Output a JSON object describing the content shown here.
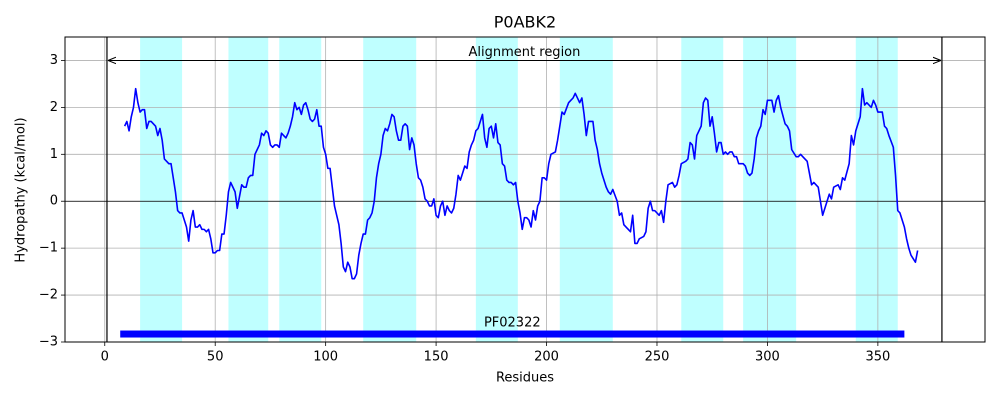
{
  "chart_data": {
    "type": "line",
    "title": "P0ABK2",
    "xlabel": "Residues",
    "ylabel": "Hydropathy (kcal/mol)",
    "x": [
      9,
      10,
      11,
      12,
      13,
      14,
      15,
      16,
      17,
      18,
      19,
      20,
      21,
      22,
      23,
      24,
      25,
      26,
      27,
      28,
      29,
      30,
      31,
      32,
      33,
      34,
      35,
      36,
      37,
      38,
      39,
      40,
      41,
      42,
      43,
      44,
      45,
      46,
      47,
      48,
      49,
      50,
      51,
      52,
      53,
      54,
      55,
      56,
      57,
      58,
      59,
      60,
      61,
      62,
      63,
      64,
      65,
      66,
      67,
      68,
      69,
      70,
      71,
      72,
      73,
      74,
      75,
      76,
      77,
      78,
      79,
      80,
      81,
      82,
      83,
      84,
      85,
      86,
      87,
      88,
      89,
      90,
      91,
      92,
      93,
      94,
      95,
      96,
      97,
      98,
      99,
      100,
      101,
      102,
      103,
      104,
      105,
      106,
      107,
      108,
      109,
      110,
      111,
      112,
      113,
      114,
      115,
      116,
      117,
      118,
      119,
      120,
      121,
      122,
      123,
      124,
      125,
      126,
      127,
      128,
      129,
      130,
      131,
      132,
      133,
      134,
      135,
      136,
      137,
      138,
      139,
      140,
      141,
      142,
      143,
      144,
      145,
      146,
      147,
      148,
      149,
      150,
      151,
      152,
      153,
      154,
      155,
      156,
      157,
      158,
      159,
      160,
      161,
      162,
      163,
      164,
      165,
      166,
      167,
      168,
      169,
      170,
      171,
      172,
      173,
      174,
      175,
      176,
      177,
      178,
      179,
      180,
      181,
      182,
      183,
      184,
      185,
      186,
      187,
      188,
      189,
      190,
      191,
      192,
      193,
      194,
      195,
      196,
      197,
      198,
      199,
      200,
      201,
      202,
      204,
      205,
      206,
      207,
      208,
      210,
      211,
      212,
      213,
      215,
      216,
      217,
      218,
      219,
      221,
      222,
      223,
      224,
      225,
      227,
      228,
      229,
      230,
      232,
      233,
      234,
      235,
      236,
      238,
      239,
      240,
      241,
      242,
      244,
      245,
      246,
      247,
      248,
      249,
      251,
      252,
      253,
      254,
      255,
      257,
      258,
      259,
      260,
      261,
      263,
      264,
      265,
      266,
      267,
      268,
      270,
      271,
      272,
      273,
      274,
      275,
      276,
      277,
      278,
      279,
      280,
      281,
      282,
      283,
      284,
      285,
      286,
      287,
      288,
      289,
      290,
      291,
      292,
      293,
      294,
      295,
      296,
      297,
      298,
      299,
      300,
      301,
      302,
      303,
      304,
      305,
      306,
      308,
      309,
      310,
      311,
      313,
      314,
      315,
      316,
      318,
      319,
      320,
      321,
      323,
      324,
      325,
      327,
      328,
      329,
      330,
      332,
      333,
      334,
      335,
      337,
      338,
      339,
      340,
      342,
      343,
      344,
      345,
      347,
      348,
      349,
      350,
      352,
      353,
      354,
      355,
      357,
      358,
      359,
      360,
      362,
      363,
      364,
      365,
      367,
      368
    ],
    "values": [
      1.6,
      1.7,
      1.5,
      1.8,
      2.0,
      2.4,
      2.1,
      1.9,
      1.95,
      1.95,
      1.55,
      1.7,
      1.7,
      1.65,
      1.6,
      1.4,
      1.55,
      1.3,
      0.9,
      0.85,
      0.8,
      0.8,
      0.5,
      0.2,
      -0.2,
      -0.25,
      -0.25,
      -0.4,
      -0.55,
      -0.85,
      -0.4,
      -0.2,
      -0.55,
      -0.55,
      -0.5,
      -0.6,
      -0.6,
      -0.65,
      -0.6,
      -0.8,
      -1.1,
      -1.1,
      -1.05,
      -1.05,
      -0.7,
      -0.7,
      -0.3,
      0.2,
      0.4,
      0.3,
      0.2,
      -0.15,
      0.1,
      0.35,
      0.3,
      0.3,
      0.5,
      0.55,
      0.55,
      1.0,
      1.1,
      1.2,
      1.45,
      1.4,
      1.5,
      1.45,
      1.2,
      1.15,
      1.2,
      1.2,
      1.15,
      1.45,
      1.4,
      1.35,
      1.45,
      1.6,
      1.8,
      2.1,
      1.95,
      2.0,
      1.85,
      2.05,
      2.1,
      1.95,
      1.75,
      1.7,
      1.75,
      1.95,
      1.6,
      1.6,
      1.15,
      1.0,
      0.7,
      0.7,
      0.3,
      -0.1,
      -0.3,
      -0.5,
      -0.9,
      -1.4,
      -1.5,
      -1.3,
      -1.4,
      -1.65,
      -1.65,
      -1.55,
      -1.15,
      -0.9,
      -0.7,
      -0.7,
      -0.4,
      -0.35,
      -0.25,
      0.0,
      0.5,
      0.8,
      1.0,
      1.4,
      1.55,
      1.5,
      1.65,
      1.85,
      1.8,
      1.5,
      1.3,
      1.3,
      1.6,
      1.65,
      1.6,
      1.1,
      1.35,
      1.2,
      0.8,
      0.5,
      0.45,
      0.3,
      0.05,
      0.0,
      -0.1,
      -0.1,
      0.05,
      -0.3,
      -0.35,
      -0.1,
      0.0,
      -0.3,
      -0.1,
      -0.2,
      -0.25,
      -0.15,
      0.15,
      0.55,
      0.45,
      0.6,
      0.75,
      0.7,
      1.05,
      1.2,
      1.3,
      1.5,
      1.55,
      1.7,
      1.85,
      1.35,
      1.15,
      1.55,
      1.6,
      1.35,
      1.65,
      1.25,
      1.2,
      0.8,
      0.75,
      0.45,
      0.4,
      0.4,
      0.35,
      0.4,
      0.0,
      -0.25,
      -0.6,
      -0.35,
      -0.35,
      -0.4,
      -0.55,
      -0.2,
      -0.4,
      -0.1,
      0.0,
      0.5,
      0.5,
      0.45,
      0.8,
      1.0,
      1.05,
      1.3,
      1.6,
      1.9,
      1.85,
      2.1,
      2.15,
      2.2,
      2.3,
      2.1,
      2.2,
      1.85,
      1.4,
      1.7,
      1.7,
      1.3,
      1.1,
      0.8,
      0.6,
      0.3,
      0.2,
      0.15,
      0.25,
      0.0,
      -0.3,
      -0.25,
      -0.5,
      -0.55,
      -0.65,
      -0.3,
      -0.9,
      -0.9,
      -0.8,
      -0.75,
      -0.65,
      -0.15,
      0.0,
      -0.2,
      -0.2,
      -0.3,
      -0.2,
      -0.45,
      0.0,
      0.35,
      0.4,
      0.3,
      0.35,
      0.55,
      0.8,
      0.85,
      0.9,
      1.25,
      1.2,
      0.9,
      1.4,
      1.6,
      2.1,
      2.2,
      2.15,
      1.6,
      1.8,
      1.45,
      1.05,
      1.25,
      1.25,
      1.0,
      1.05,
      1.0,
      1.05,
      1.05,
      0.95,
      0.95,
      0.8,
      0.8,
      0.8,
      0.75,
      0.6,
      0.55,
      0.6,
      0.9,
      1.35,
      1.5,
      1.6,
      1.95,
      1.85,
      2.15,
      2.15,
      2.15,
      1.9,
      2.15,
      2.25,
      2.0,
      1.65,
      1.6,
      1.5,
      1.1,
      0.95,
      0.95,
      1.0,
      0.95,
      0.85,
      0.6,
      0.35,
      0.4,
      0.3,
      0.0,
      -0.3,
      0.0,
      0.15,
      0.05,
      0.3,
      0.35,
      0.25,
      0.5,
      0.45,
      0.8,
      1.4,
      1.2,
      1.5,
      1.8,
      2.4,
      2.05,
      2.1,
      2.0,
      2.15,
      2.05,
      1.9,
      1.9,
      1.6,
      1.55,
      1.4,
      1.15,
      0.55,
      -0.2,
      -0.25,
      -0.55,
      -0.8,
      -1.0,
      -1.15,
      -1.3,
      -1.05
    ],
    "color": "#0000ff",
    "xlim": [
      -18,
      398.5
    ],
    "ylim": [
      -3,
      3.5
    ],
    "xticks": [
      0,
      50,
      100,
      150,
      200,
      250,
      300,
      350
    ],
    "yticks": [
      {
        "value": -3,
        "label": "−3"
      },
      {
        "value": -2,
        "label": "−2"
      },
      {
        "value": -1,
        "label": "−1"
      },
      0,
      1,
      2,
      3
    ],
    "grid": true,
    "hline": 0,
    "regions": [
      [
        16,
        35
      ],
      [
        56,
        74
      ],
      [
        79,
        98
      ],
      [
        117,
        141
      ],
      [
        168,
        187
      ],
      [
        206,
        230
      ],
      [
        261,
        280
      ],
      [
        289,
        313
      ],
      [
        340,
        359
      ]
    ],
    "region_color": "#bfffff",
    "alignment_region": {
      "start": 1,
      "end": 379,
      "y": 3,
      "label": "Alignment region"
    },
    "domains": [
      {
        "name": "PF02322",
        "start": 7,
        "end": 362,
        "y": -2.83,
        "color": "#0000ff"
      }
    ]
  }
}
